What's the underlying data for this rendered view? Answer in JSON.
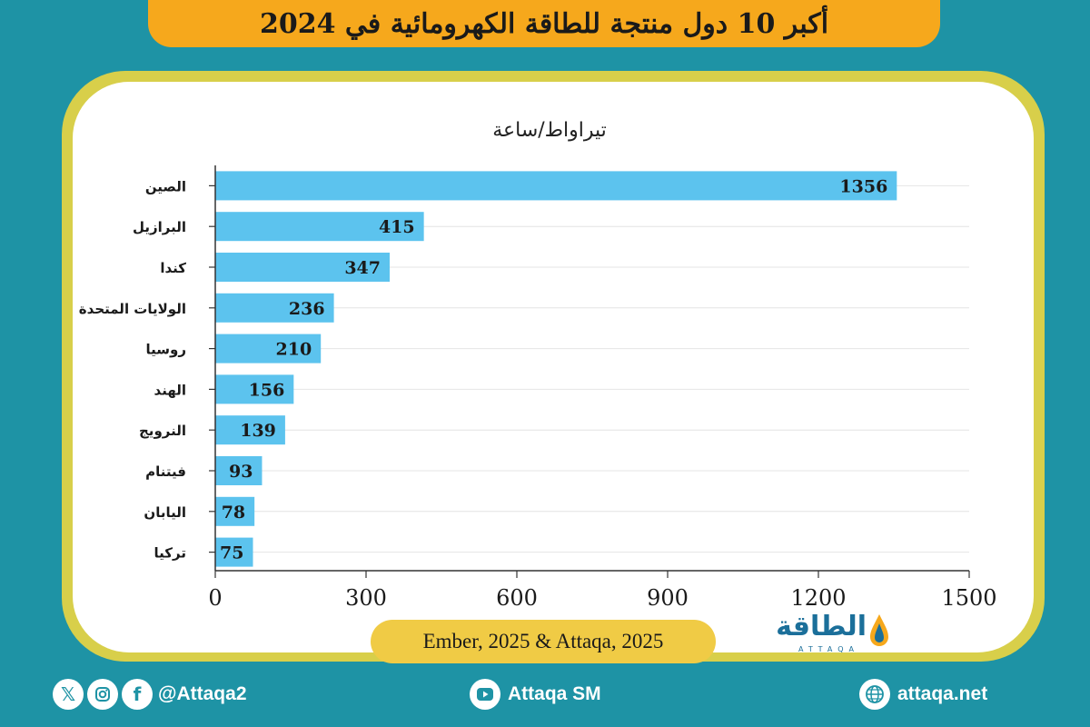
{
  "title": "أكبر 10 دول منتجة للطاقة الكهرومائية في 2024",
  "chart_data": {
    "type": "bar",
    "orientation": "horizontal",
    "title": "أكبر 10 دول منتجة للطاقة الكهرومائية في 2024",
    "unit_label": "تيراواط/ساعة",
    "categories": [
      "الصين",
      "البرازيل",
      "كندا",
      "الولايات المتحدة",
      "روسيا",
      "الهند",
      "النرويج",
      "فيتنام",
      "اليابان",
      "تركيا"
    ],
    "values": [
      1356,
      415,
      347,
      236,
      210,
      156,
      139,
      93,
      78,
      75
    ],
    "value_labels": [
      "1356",
      "415",
      "347",
      "236",
      "210",
      "156",
      "139",
      "93",
      "78",
      "75"
    ],
    "xlim": [
      0,
      1500
    ],
    "xticks": [
      "0",
      "300",
      "600",
      "900",
      "1200",
      "1500"
    ],
    "xtick_values": [
      0,
      300,
      600,
      900,
      1200,
      1500
    ],
    "bar_color": "#5cc3ee"
  },
  "source": "Ember, 2025 & Attaqa, 2025",
  "logo": {
    "name": "الطاقة",
    "sub": "ATTAQA"
  },
  "footer": {
    "social_icons": [
      "x-icon",
      "instagram-icon",
      "facebook-icon"
    ],
    "social_handle": "@Attaqa2",
    "youtube_label": "Attaqa SM",
    "website": "attaqa.net"
  },
  "colors": {
    "background": "#1e93a5",
    "title_bar": "#f6a81c",
    "frame": "#d8cf4a",
    "source_pill": "#f0cb45"
  }
}
